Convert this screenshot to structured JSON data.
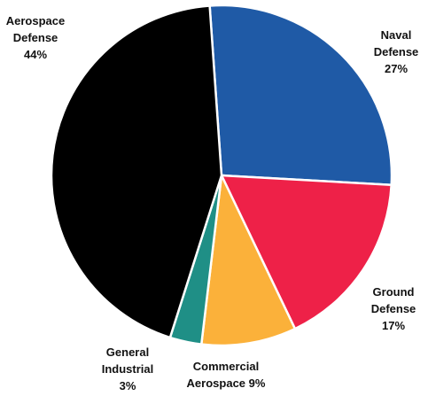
{
  "chart_data": {
    "type": "pie",
    "unit": "%",
    "slices": [
      {
        "name": "Naval Defense",
        "value": 27,
        "color": "#1f5aa6"
      },
      {
        "name": "Ground Defense",
        "value": 17,
        "color": "#ee2148"
      },
      {
        "name": "Commercial Aerospace",
        "value": 9,
        "color": "#fbb13a"
      },
      {
        "name": "General Industrial",
        "value": 3,
        "color": "#1f8f86"
      },
      {
        "name": "Aerospace Defense",
        "value": 44,
        "color": "#000000"
      }
    ]
  },
  "labels": {
    "aerospace_defense": {
      "line1": "Aerospace",
      "line2": "Defense",
      "line3": "44%"
    },
    "naval_defense": {
      "line1": "Naval",
      "line2": "Defense",
      "line3": "27%"
    },
    "ground_defense": {
      "line1": "Ground",
      "line2": "Defense",
      "line3": "17%"
    },
    "general_industrial": {
      "line1": "General",
      "line2": "Industrial",
      "line3": "3%"
    },
    "commercial_aerospace": {
      "line1": "Commercial",
      "line2": "Aerospace 9%"
    }
  }
}
